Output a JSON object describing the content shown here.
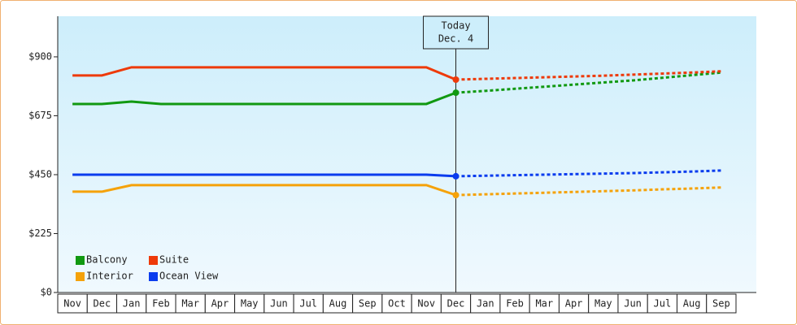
{
  "chart_data": {
    "type": "line",
    "categories": [
      "Nov",
      "Dec",
      "Jan",
      "Feb",
      "Mar",
      "Apr",
      "May",
      "Jun",
      "Jul",
      "Aug",
      "Sep",
      "Oct",
      "Nov",
      "Dec",
      "Jan",
      "Feb",
      "Mar",
      "Apr",
      "May",
      "Jun",
      "Jul",
      "Aug",
      "Sep"
    ],
    "series": [
      {
        "name": "Balcony",
        "color": "#119911",
        "values": [
          720,
          720,
          729,
          720,
          720,
          720,
          720,
          720,
          720,
          720,
          720,
          720,
          720,
          763,
          770,
          778,
          786,
          794,
          802,
          810,
          820,
          830,
          840
        ]
      },
      {
        "name": "Suite",
        "color": "#ee3a0a",
        "values": [
          829,
          829,
          860,
          860,
          860,
          860,
          860,
          860,
          860,
          860,
          860,
          860,
          860,
          813,
          816,
          819,
          822,
          825,
          828,
          832,
          836,
          840,
          845
        ]
      },
      {
        "name": "Interior",
        "color": "#f5a20a",
        "values": [
          385,
          385,
          410,
          410,
          410,
          410,
          410,
          410,
          410,
          410,
          410,
          410,
          410,
          372,
          375,
          378,
          381,
          384,
          387,
          390,
          394,
          397,
          401
        ]
      },
      {
        "name": "Ocean View",
        "color": "#0a3cee",
        "values": [
          450,
          450,
          450,
          450,
          450,
          450,
          450,
          450,
          450,
          450,
          450,
          450,
          450,
          444,
          446,
          448,
          450,
          452,
          454,
          456,
          459,
          462,
          466
        ]
      }
    ],
    "annotation": {
      "lines": [
        "Today",
        "Dec. 4"
      ],
      "x": 13
    },
    "ylim": [
      0,
      1055
    ],
    "yticks": [
      {
        "value": 0,
        "label": "$0"
      },
      {
        "value": 225,
        "label": "$225"
      },
      {
        "value": 450,
        "label": "$450"
      },
      {
        "value": 675,
        "label": "$675"
      },
      {
        "value": 900,
        "label": "$900"
      }
    ],
    "legend": "lower left"
  }
}
